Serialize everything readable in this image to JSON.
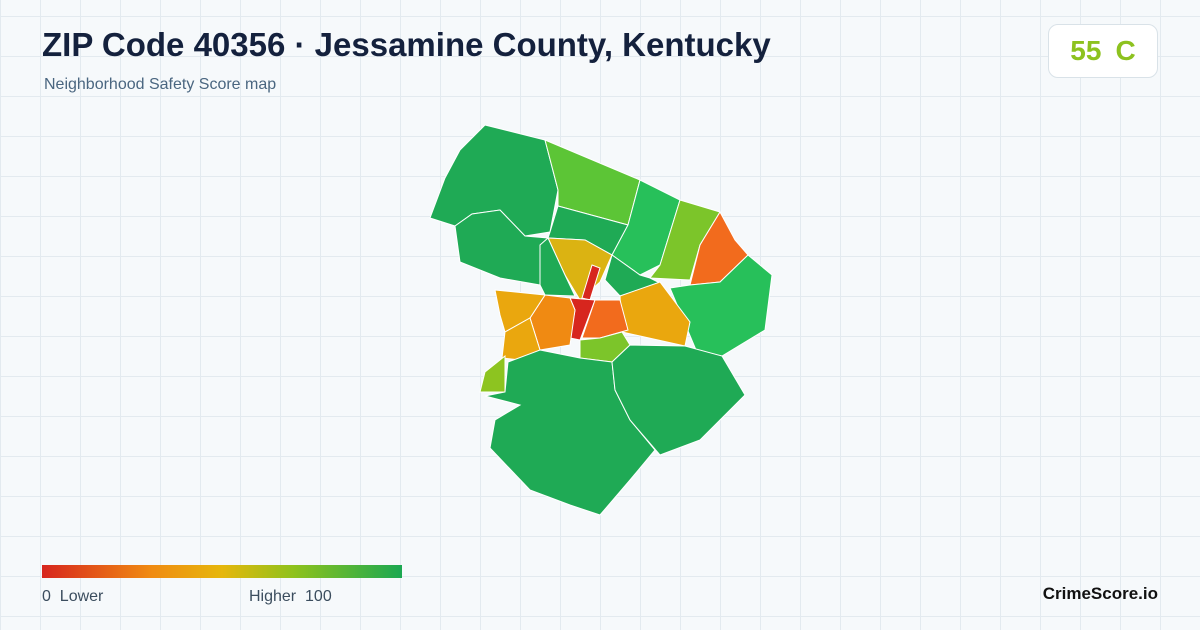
{
  "header": {
    "title": "ZIP Code 40356 · Jessamine County, Kentucky",
    "subtitle": "Neighborhood Safety Score map"
  },
  "badge": {
    "score": "55",
    "grade": "C"
  },
  "legend": {
    "min": "0",
    "min_label": "Lower",
    "max_label": "Higher",
    "max": "100"
  },
  "brand": "CrimeScore.io"
}
